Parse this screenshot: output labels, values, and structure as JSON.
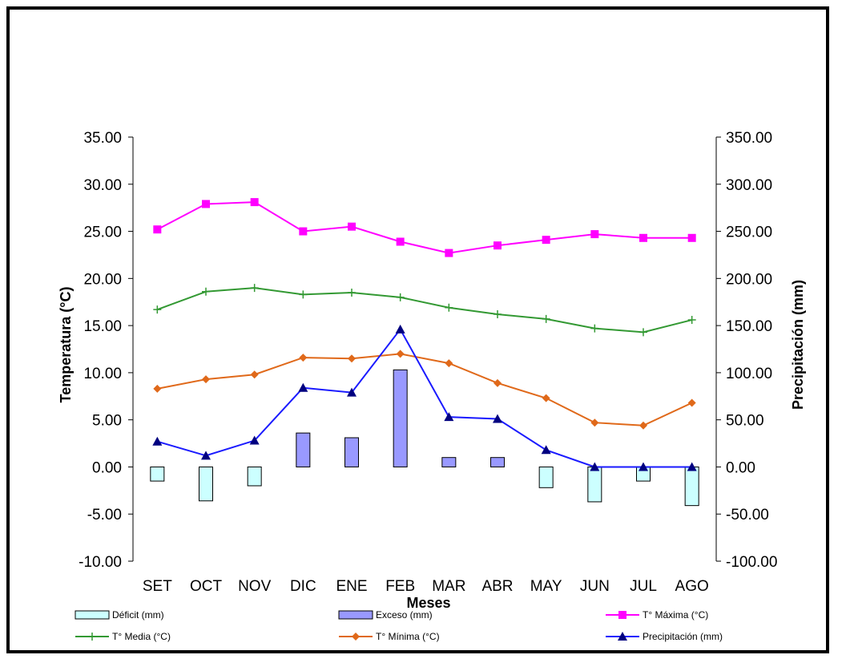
{
  "chart_data": {
    "type": "bar+line",
    "categories": [
      "SET",
      "OCT",
      "NOV",
      "DIC",
      "ENE",
      "FEB",
      "MAR",
      "ABR",
      "MAY",
      "JUN",
      "JUL",
      "AGO"
    ],
    "xlabel": "Meses",
    "ylabel_left": "Temperatura (°C)",
    "ylabel_right": "Precipitación (mm)",
    "ylim_left": [
      -10,
      35
    ],
    "ylim_right": [
      -100,
      350
    ],
    "yticks_left": [
      "35.00",
      "30.00",
      "25.00",
      "20.00",
      "15.00",
      "10.00",
      "5.00",
      "0.00",
      "-5.00",
      "-10.00"
    ],
    "yticks_right": [
      "350.00",
      "300.00",
      "250.00",
      "200.00",
      "150.00",
      "100.00",
      "50.00",
      "0.00",
      "-50.00",
      "-100.00"
    ],
    "grid": false,
    "legend_position": "bottom",
    "bar_series": [
      {
        "name": "Déficit (mm)",
        "axis": "right",
        "color": "#ccffff",
        "values": [
          -15,
          -36,
          -20,
          0,
          0,
          0,
          0,
          0,
          -22,
          -37,
          -15,
          -41
        ]
      },
      {
        "name": "Exceso (mm)",
        "axis": "right",
        "color": "#9999ff",
        "values": [
          0,
          0,
          0,
          36,
          31,
          103,
          10,
          10,
          0,
          0,
          0,
          0
        ]
      }
    ],
    "line_series": [
      {
        "name": "T° Máxima (°C)",
        "axis": "left",
        "color": "#ff00ff",
        "marker": "square",
        "values": [
          25.2,
          27.9,
          28.1,
          25.0,
          25.5,
          23.9,
          22.7,
          23.5,
          24.1,
          24.7,
          24.3,
          24.3
        ]
      },
      {
        "name": "T° Media (°C)",
        "axis": "left",
        "color": "#339933",
        "marker": "plus",
        "values": [
          16.7,
          18.6,
          19.0,
          18.3,
          18.5,
          18.0,
          16.9,
          16.2,
          15.7,
          14.7,
          14.3,
          15.6
        ]
      },
      {
        "name": "T° Mínima (°C)",
        "axis": "left",
        "color": "#e0691a",
        "marker": "diamond",
        "values": [
          8.3,
          9.3,
          9.8,
          11.6,
          11.5,
          12.0,
          11.0,
          8.9,
          7.3,
          4.7,
          4.4,
          6.8
        ]
      },
      {
        "name": "Precipitación (mm)",
        "axis": "right",
        "color": "#1a1aff",
        "marker": "triangle",
        "values": [
          27,
          12,
          28,
          84,
          79,
          146,
          53,
          51,
          18,
          0,
          0,
          0
        ]
      }
    ]
  }
}
